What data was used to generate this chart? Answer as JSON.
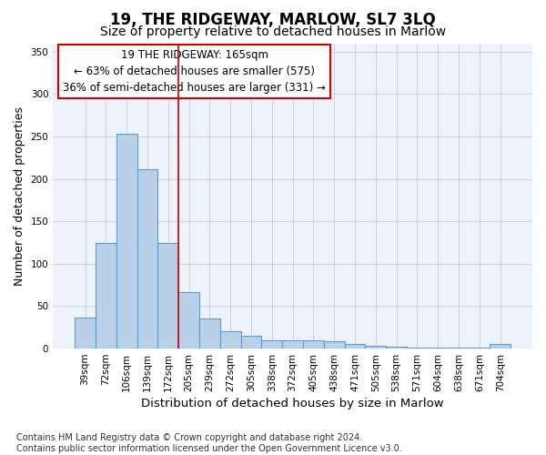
{
  "title": "19, THE RIDGEWAY, MARLOW, SL7 3LQ",
  "subtitle": "Size of property relative to detached houses in Marlow",
  "xlabel": "Distribution of detached houses by size in Marlow",
  "ylabel": "Number of detached properties",
  "categories": [
    "39sqm",
    "72sqm",
    "106sqm",
    "139sqm",
    "172sqm",
    "205sqm",
    "239sqm",
    "272sqm",
    "305sqm",
    "338sqm",
    "372sqm",
    "405sqm",
    "438sqm",
    "471sqm",
    "505sqm",
    "538sqm",
    "571sqm",
    "604sqm",
    "638sqm",
    "671sqm",
    "704sqm"
  ],
  "values": [
    37,
    124,
    253,
    211,
    125,
    67,
    35,
    20,
    15,
    10,
    10,
    10,
    9,
    5,
    3,
    2,
    1,
    1,
    1,
    1,
    5
  ],
  "bar_color": "#b8d0e8",
  "bar_edge_color": "#5b9bd5",
  "background_color": "#eef2fa",
  "grid_color": "#c8d0e0",
  "annotation_text": "19 THE RIDGEWAY: 165sqm\n← 63% of detached houses are smaller (575)\n36% of semi-detached houses are larger (331) →",
  "annotation_box_color": "#ffffff",
  "annotation_box_edge": "#cc0000",
  "red_line_x": 4.5,
  "ylim": [
    0,
    360
  ],
  "yticks": [
    0,
    50,
    100,
    150,
    200,
    250,
    300,
    350
  ],
  "footer": "Contains HM Land Registry data © Crown copyright and database right 2024.\nContains public sector information licensed under the Open Government Licence v3.0.",
  "title_fontsize": 12,
  "subtitle_fontsize": 10,
  "xlabel_fontsize": 9.5,
  "ylabel_fontsize": 9,
  "tick_fontsize": 7.5,
  "annotation_fontsize": 8.5,
  "footer_fontsize": 7
}
